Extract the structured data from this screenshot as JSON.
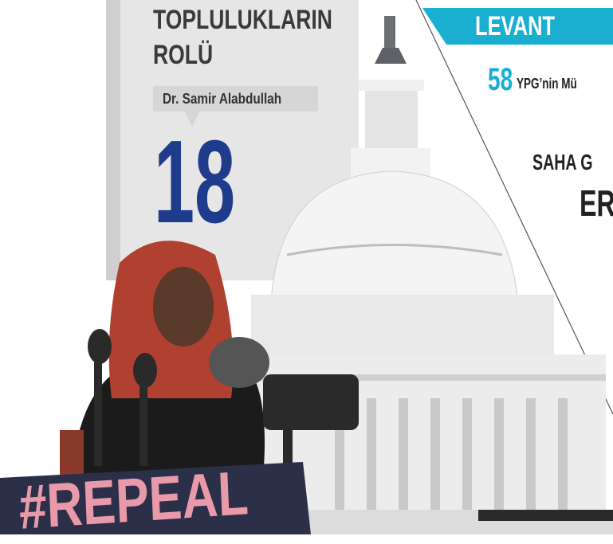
{
  "left_article": {
    "title_lines": [
      "TOPLULUKLARIN",
      "ROLÜ"
    ],
    "author": "Dr. Samir Alabdullah",
    "page": "18"
  },
  "right_section": {
    "label": "LEVANT",
    "page": "58",
    "teaser": "YPG’nin Mü",
    "headline_lines": [
      "SAHA G",
      "ERI"
    ]
  },
  "photo": {
    "sign_text": "#REPEAL"
  }
}
